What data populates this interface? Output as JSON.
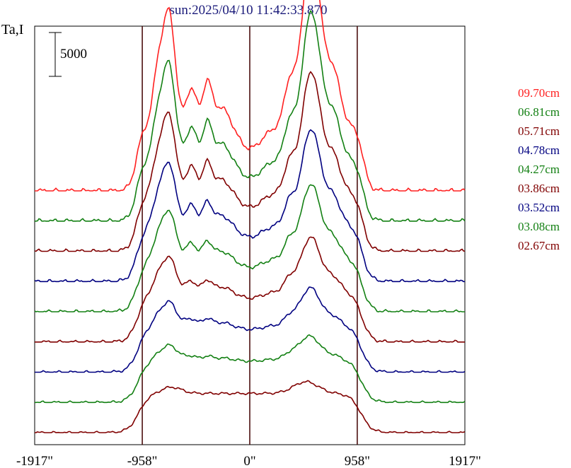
{
  "header": {
    "title": "sun:2025/04/10 11:42:33.870",
    "title_color": "#1a1a7a"
  },
  "chart_data": {
    "type": "line",
    "title": "sun:2025/04/10 11:42:33.870",
    "ylabel": "Ta,I",
    "scale_bar_label": "5000",
    "scale_bar_value": 5000,
    "x_ticks": [
      {
        "value": -1917,
        "label": "-1917\""
      },
      {
        "value": -958,
        "label": "-958\""
      },
      {
        "value": 0,
        "label": "0\""
      },
      {
        "value": 958,
        "label": "958\""
      },
      {
        "value": 1917,
        "label": "1917\""
      }
    ],
    "vertical_lines": [
      -958,
      0,
      958
    ],
    "xlim": [
      -1917,
      1917
    ],
    "colors": {
      "red": "#ff2020",
      "green": "#138013",
      "maroon": "#800000",
      "navy": "#000080"
    },
    "series": [
      {
        "name": "09.70cm",
        "color": "#ff2020"
      },
      {
        "name": "06.81cm",
        "color": "#138013"
      },
      {
        "name": "05.71cm",
        "color": "#800000"
      },
      {
        "name": "04.78cm",
        "color": "#000080"
      },
      {
        "name": "04.27cm",
        "color": "#138013"
      },
      {
        "name": "03.86cm",
        "color": "#800000"
      },
      {
        "name": "03.52cm",
        "color": "#000080"
      },
      {
        "name": "03.08cm",
        "color": "#138013"
      },
      {
        "name": "02.67cm",
        "color": "#800000"
      }
    ],
    "legend_position": "right"
  }
}
